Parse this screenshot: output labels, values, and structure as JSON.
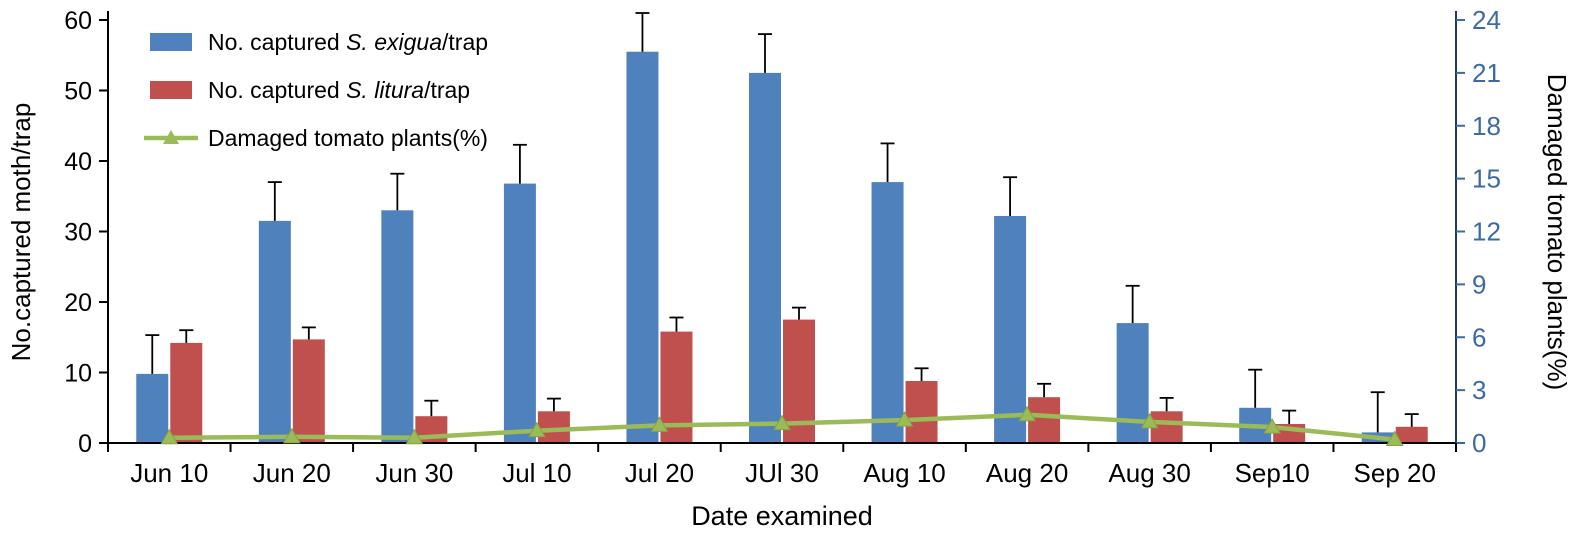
{
  "figure": {
    "background": "#ffffff"
  },
  "chart_data": {
    "type": "bar",
    "categories": [
      "Jun 10",
      "Jun 20",
      "Jun 30",
      "Jul 10",
      "Jul 20",
      "JUl 30",
      "Aug 10",
      "Aug 20",
      "Aug 30",
      "Sep10",
      "Sep 20"
    ],
    "xlabel": "Date examined",
    "grid": false,
    "legend_position": "top-left-inside",
    "left_axis": {
      "label": "No.captured moth/trap",
      "min": 0,
      "max": 60,
      "step": 10,
      "tick_labels": [
        "0",
        "10",
        "20",
        "30",
        "40",
        "50",
        "60"
      ],
      "color": "#000000"
    },
    "right_axis": {
      "label": "Damaged tomato plants(%)",
      "min": 0,
      "max": 24,
      "step": 3,
      "tick_labels": [
        "0",
        "3",
        "6",
        "9",
        "12",
        "15",
        "18",
        "21",
        "24"
      ],
      "color": "#3B6AA5"
    },
    "series": [
      {
        "name": "No. captured S. exigua/trap",
        "type": "bar",
        "axis": "left",
        "color": "#4F81BD",
        "values": [
          9.8,
          31.5,
          33,
          36.8,
          55.5,
          52.5,
          37,
          32.2,
          17,
          5,
          1.5
        ],
        "errors": [
          5.5,
          5.5,
          5.2,
          5.5,
          5.5,
          5.5,
          5.5,
          5.5,
          5.3,
          5.4,
          5.7
        ]
      },
      {
        "name": "No. captured S. litura/trap",
        "type": "bar",
        "axis": "left",
        "color": "#C0504D",
        "values": [
          14.2,
          14.7,
          3.8,
          4.5,
          15.8,
          17.5,
          8.8,
          6.5,
          4.5,
          2.7,
          2.3
        ],
        "errors": [
          1.8,
          1.7,
          2.2,
          1.8,
          2.0,
          1.7,
          1.8,
          1.9,
          1.9,
          1.9,
          1.8
        ]
      },
      {
        "name": "Damaged tomato plants(%)",
        "type": "line",
        "axis": "right",
        "color": "#9BBB59",
        "marker": "triangle-up",
        "values": [
          0.3,
          0.35,
          0.3,
          0.7,
          1.0,
          1.1,
          1.3,
          1.6,
          1.2,
          0.9,
          0.2
        ]
      }
    ],
    "legend": [
      {
        "prefix": "No. captured ",
        "italic": "S. exigua",
        "suffix": "/trap",
        "marker": "bar",
        "color": "#4F81BD"
      },
      {
        "prefix": "No. captured ",
        "italic": "S. litura",
        "suffix": "/trap",
        "marker": "bar",
        "color": "#C0504D"
      },
      {
        "prefix": "Damaged tomato plants(%)",
        "italic": "",
        "suffix": "",
        "marker": "line",
        "color": "#9BBB59"
      }
    ]
  }
}
